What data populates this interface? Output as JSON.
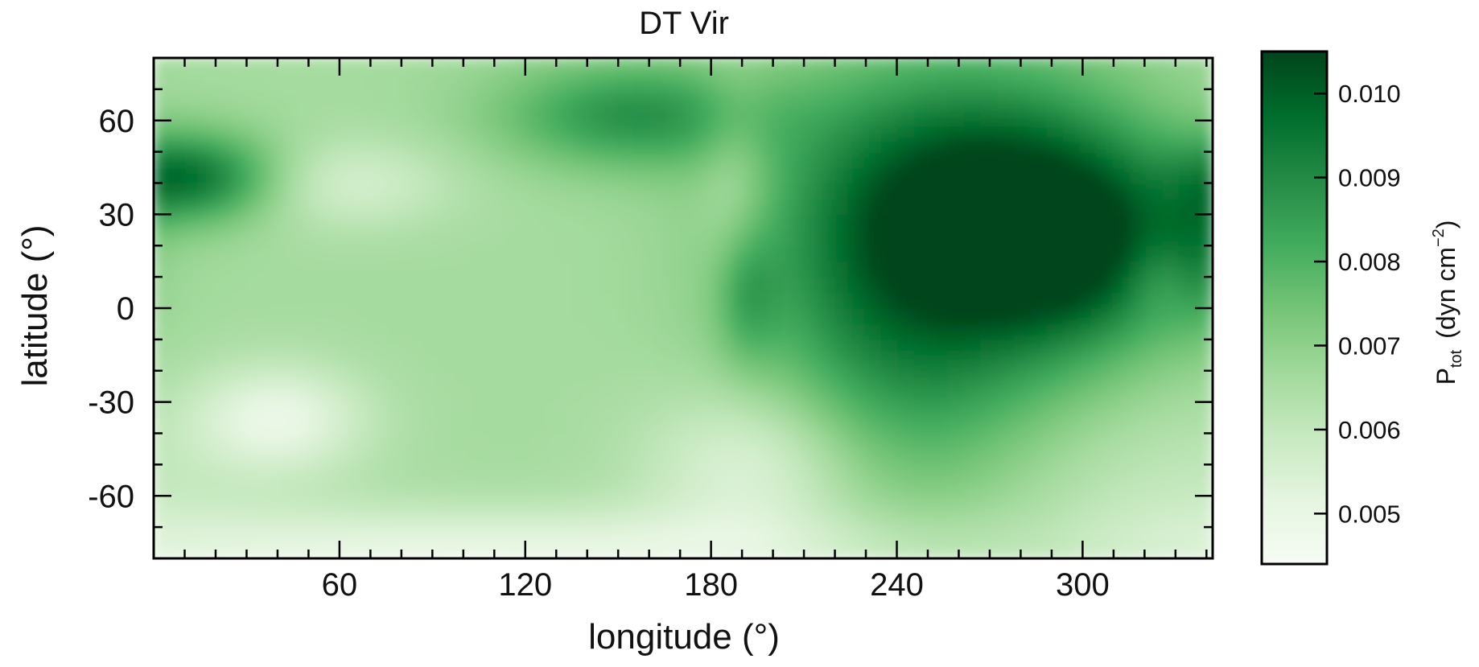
{
  "chart_data": {
    "type": "heatmap",
    "title": "DT Vir",
    "xlabel": "longitude (°)",
    "ylabel": "latitude (°)",
    "xlim": [
      0,
      342
    ],
    "ylim": [
      -80,
      80
    ],
    "xticks": [
      60,
      120,
      180,
      240,
      300
    ],
    "yticks": [
      -60,
      -30,
      0,
      30,
      60
    ],
    "colorbar": {
      "label_main": "P",
      "label_sub": "tot",
      "label_units": "(dyn cm",
      "label_exp": "−2",
      "label_close": ")",
      "range": [
        0.0044,
        0.0105
      ],
      "ticks": [
        "0.005",
        "0.006",
        "0.007",
        "0.008",
        "0.009",
        "0.010"
      ],
      "tick_values": [
        0.005,
        0.006,
        0.007,
        0.008,
        0.009,
        0.01
      ],
      "colors": [
        "#f7fcf5",
        "#e5f5e0",
        "#c7e9c0",
        "#a1d99b",
        "#74c476",
        "#41ab5d",
        "#238b45",
        "#006d2c",
        "#00441b"
      ]
    },
    "base_value": 0.0066,
    "field_features": [
      {
        "lon": 265,
        "lat": 35,
        "value": 0.0099,
        "slon": 40,
        "slat": 30
      },
      {
        "lon": 245,
        "lat": -5,
        "value": 0.0088,
        "slon": 34,
        "slat": 40
      },
      {
        "lon": 300,
        "lat": 20,
        "value": 0.0092,
        "slon": 25,
        "slat": 22
      },
      {
        "lon": 10,
        "lat": 42,
        "value": 0.0098,
        "slon": 22,
        "slat": 10
      },
      {
        "lon": 155,
        "lat": 62,
        "value": 0.0088,
        "slon": 30,
        "slat": 12
      },
      {
        "lon": 192,
        "lat": 5,
        "value": 0.0079,
        "slon": 7,
        "slat": 15
      },
      {
        "lon": 340,
        "lat": 20,
        "value": 0.0082,
        "slon": 10,
        "slat": 18
      },
      {
        "lon": 110,
        "lat": -78,
        "value": 0.005,
        "slon": 110,
        "slat": 10
      },
      {
        "lon": 40,
        "lat": -35,
        "value": 0.005,
        "slon": 20,
        "slat": 12
      },
      {
        "lon": 195,
        "lat": -50,
        "value": 0.0052,
        "slon": 25,
        "slat": 18
      },
      {
        "lon": 330,
        "lat": -60,
        "value": 0.006,
        "slon": 50,
        "slat": 20
      },
      {
        "lon": 188,
        "lat": 40,
        "value": 0.0058,
        "slon": 8,
        "slat": 25
      },
      {
        "lon": 325,
        "lat": 10,
        "value": 0.006,
        "slon": 8,
        "slat": 8
      },
      {
        "lon": 60,
        "lat": 40,
        "value": 0.0055,
        "slon": 25,
        "slat": 10
      }
    ]
  }
}
